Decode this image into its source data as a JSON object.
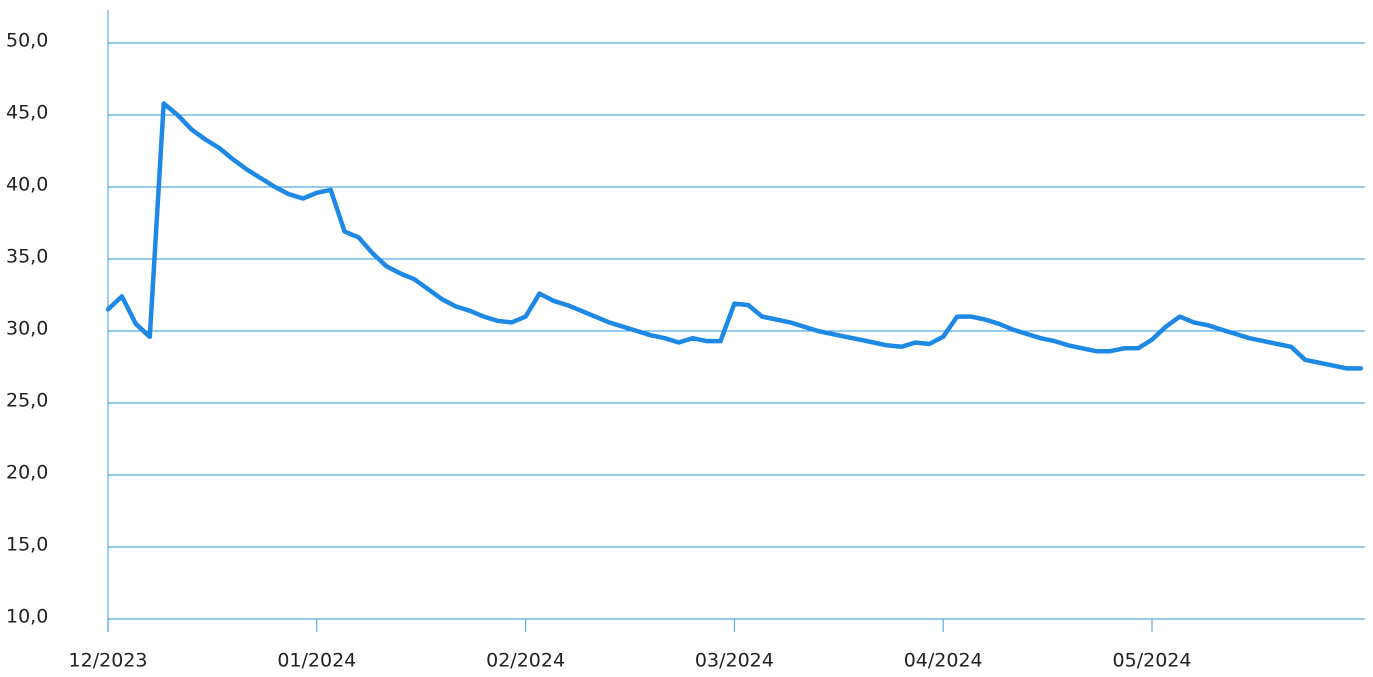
{
  "chart_data": {
    "type": "line",
    "categories": [
      "12/2023",
      null,
      null,
      null,
      null,
      null,
      null,
      null,
      null,
      null,
      null,
      null,
      null,
      null,
      null,
      "01/2024",
      null,
      null,
      null,
      null,
      null,
      null,
      null,
      null,
      null,
      null,
      null,
      null,
      null,
      null,
      "02/2024",
      null,
      null,
      null,
      null,
      null,
      null,
      null,
      null,
      null,
      null,
      null,
      null,
      null,
      null,
      "03/2024",
      null,
      null,
      null,
      null,
      null,
      null,
      null,
      null,
      null,
      null,
      null,
      null,
      null,
      null,
      "04/2024",
      null,
      null,
      null,
      null,
      null,
      null,
      null,
      null,
      null,
      null,
      null,
      null,
      null,
      null,
      "05/2024",
      null,
      null,
      null,
      null,
      null,
      null,
      null,
      null,
      null,
      null,
      null,
      null,
      null,
      null,
      null
    ],
    "series": [
      {
        "color": "#1e88e5",
        "values": [
          31.5,
          32.4,
          30.5,
          29.6,
          45.8,
          45.0,
          44.0,
          43.3,
          42.7,
          41.9,
          41.2,
          40.6,
          40.0,
          39.5,
          39.2,
          39.6,
          39.8,
          36.9,
          36.5,
          35.4,
          34.5,
          34.0,
          33.6,
          32.9,
          32.2,
          31.7,
          31.4,
          31.0,
          30.7,
          30.6,
          31.0,
          32.6,
          32.1,
          31.8,
          31.4,
          31.0,
          30.6,
          30.3,
          30.0,
          29.7,
          29.5,
          29.2,
          29.5,
          29.3,
          29.3,
          31.9,
          31.8,
          31.0,
          30.8,
          30.6,
          30.3,
          30.0,
          29.8,
          29.6,
          29.4,
          29.2,
          29.0,
          28.9,
          29.2,
          29.1,
          29.6,
          31.0,
          31.0,
          30.8,
          30.5,
          30.1,
          29.8,
          29.5,
          29.3,
          29.0,
          28.8,
          28.6,
          28.6,
          28.8,
          28.8,
          29.4,
          30.3,
          31.0,
          30.6,
          30.4,
          30.1,
          29.8,
          29.5,
          29.3,
          29.1,
          28.9,
          28.0,
          27.8,
          27.6,
          27.4,
          27.4
        ]
      }
    ],
    "ylim": [
      10,
      50
    ],
    "yticks": [
      {
        "value": 10,
        "label": "10,0"
      },
      {
        "value": 15,
        "label": "15,0"
      },
      {
        "value": 20,
        "label": "20,0"
      },
      {
        "value": 25,
        "label": "25,0"
      },
      {
        "value": 30,
        "label": "30,0"
      },
      {
        "value": 35,
        "label": "35,0"
      },
      {
        "value": 40,
        "label": "40,0"
      },
      {
        "value": 45,
        "label": "45,0"
      },
      {
        "value": 50,
        "label": "50,0"
      }
    ],
    "grid": true
  }
}
